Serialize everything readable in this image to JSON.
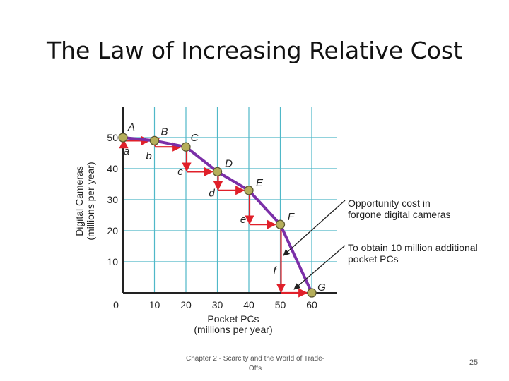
{
  "slide": {
    "title": "The Law of Increasing Relative Cost",
    "footer_line1": "Chapter 2 - Scarcity and the World of Trade-",
    "footer_line2": "Offs",
    "page_number": "25"
  },
  "colors": {
    "curve": "#7b2fa8",
    "arrow": "#e0202a",
    "point_fill": "#b5ae5a",
    "grid": "#4fb8c8",
    "axis": "#222222"
  },
  "chart_data": {
    "type": "line",
    "xlabel_lines": [
      "Pocket PCs",
      "(millions per year)"
    ],
    "ylabel_lines": [
      "Digital Cameras",
      "(millions per year)"
    ],
    "xlim": [
      0,
      60
    ],
    "ylim": [
      0,
      50
    ],
    "x_ticks": [
      0,
      10,
      20,
      30,
      40,
      50,
      60
    ],
    "y_ticks": [
      10,
      20,
      30,
      40,
      50
    ],
    "grid": true,
    "points": [
      {
        "label": "A",
        "x": 0,
        "y": 50
      },
      {
        "label": "B",
        "x": 10,
        "y": 49
      },
      {
        "label": "C",
        "x": 20,
        "y": 47
      },
      {
        "label": "D",
        "x": 30,
        "y": 39
      },
      {
        "label": "E",
        "x": 40,
        "y": 33
      },
      {
        "label": "F",
        "x": 50,
        "y": 22
      },
      {
        "label": "G",
        "x": 60,
        "y": 0
      }
    ],
    "steps": [
      {
        "label": "a",
        "from": "A",
        "to": "B"
      },
      {
        "label": "b",
        "from": "B",
        "to": "C"
      },
      {
        "label": "c",
        "from": "C",
        "to": "D"
      },
      {
        "label": "d",
        "from": "D",
        "to": "E"
      },
      {
        "label": "e",
        "from": "E",
        "to": "F"
      },
      {
        "label": "f",
        "from": "F",
        "to": "G"
      }
    ],
    "annotations": [
      {
        "lines": [
          "Opportunity cost in",
          "forgone digital cameras"
        ]
      },
      {
        "lines": [
          "To obtain 10 million additional",
          "pocket PCs"
        ]
      }
    ]
  }
}
